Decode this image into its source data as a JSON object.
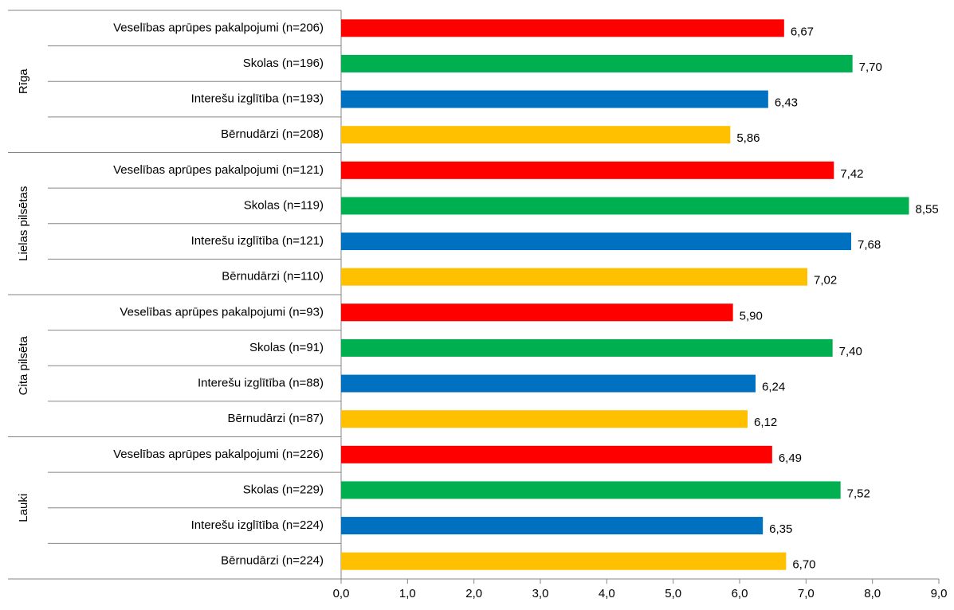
{
  "chart_data": {
    "type": "barh",
    "groups": [
      {
        "name": "Rīga",
        "categories": [
          "Veselības aprūpes pakalpojumi  (n=206)",
          "Skolas (n=196)",
          "Interešu izglītība  (n=193)",
          "Bērnudārzi (n=208)"
        ],
        "values": [
          6.67,
          7.7,
          6.43,
          5.86
        ],
        "value_labels": [
          "6,67",
          "7,70",
          "6,43",
          "5,86"
        ]
      },
      {
        "name": "Lielas pilsētas",
        "categories": [
          "Veselības aprūpes pakalpojumi  (n=121)",
          "Skolas (n=119)",
          "Interešu izglītība  (n=121)",
          "Bērnudārzi (n=110)"
        ],
        "values": [
          7.42,
          8.55,
          7.68,
          7.02
        ],
        "value_labels": [
          "7,42",
          "8,55",
          "7,68",
          "7,02"
        ]
      },
      {
        "name": "Cita pilsēta",
        "categories": [
          "Veselības aprūpes pakalpojumi  (n=93)",
          "Skolas (n=91)",
          "Interešu izglītība  (n=88)",
          "Bērnudārzi (n=87)"
        ],
        "values": [
          5.9,
          7.4,
          6.24,
          6.12
        ],
        "value_labels": [
          "5,90",
          "7,40",
          "6,24",
          "6,12"
        ]
      },
      {
        "name": "Lauki",
        "categories": [
          "Veselības aprūpes pakalpojumi  (n=226)",
          "Skolas (n=229)",
          "Interešu izglītība  (n=224)",
          "Bērnudārzi (n=224)"
        ],
        "values": [
          6.49,
          7.52,
          6.35,
          6.7
        ],
        "value_labels": [
          "6,49",
          "7,52",
          "6,35",
          "6,70"
        ]
      }
    ],
    "colors": [
      "#ff0000",
      "#00b050",
      "#0070c0",
      "#ffc000"
    ],
    "xlim": [
      0,
      9
    ],
    "xticks": [
      {
        "value": 0,
        "label": "0,0"
      },
      {
        "value": 1,
        "label": "1,0"
      },
      {
        "value": 2,
        "label": "2,0"
      },
      {
        "value": 3,
        "label": "3,0"
      },
      {
        "value": 4,
        "label": "4,0"
      },
      {
        "value": 5,
        "label": "5,0"
      },
      {
        "value": 6,
        "label": "6,0"
      },
      {
        "value": 7,
        "label": "7,0"
      },
      {
        "value": 8,
        "label": "8,0"
      },
      {
        "value": 9,
        "label": "9,0"
      }
    ]
  }
}
